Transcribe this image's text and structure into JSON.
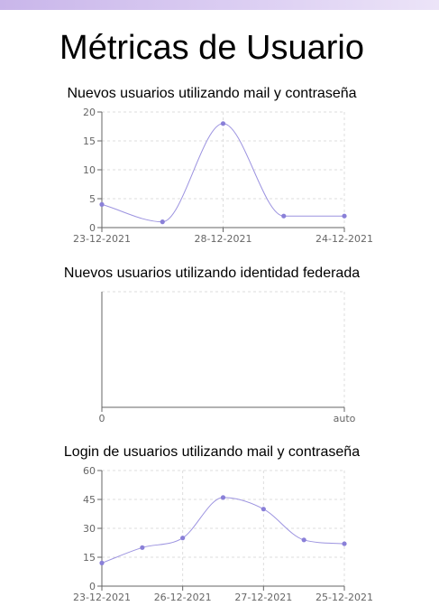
{
  "page": {
    "title": "Métricas de Usuario"
  },
  "style": {
    "line_color": "#9c93e0",
    "point_color": "#8a80d8",
    "grid_color": "#dddddd",
    "axis_color": "#666666",
    "top_bar_color": "#c9b6ea"
  },
  "chart_data": [
    {
      "type": "line",
      "title": "Nuevos usuarios utilizando mail y contraseña",
      "x": [
        "23-12-2021",
        "",
        "28-12-2021",
        "",
        "24-12-2021"
      ],
      "values": [
        4,
        1,
        18,
        2,
        2
      ],
      "ylim": [
        0,
        20
      ],
      "yticks": [
        0,
        5,
        10,
        15,
        20
      ],
      "xtick_labels": [
        "23-12-2021",
        "28-12-2021",
        "24-12-2021"
      ],
      "grid": true,
      "legend": "none"
    },
    {
      "type": "line",
      "title": "Nuevos usuarios utilizando identidad federada",
      "x": [],
      "values": [],
      "xtick_labels": [
        "0",
        "auto"
      ],
      "grid": true,
      "legend": "none"
    },
    {
      "type": "line",
      "title": "Login de usuarios utilizando mail y contraseña",
      "x": [
        "23-12-2021",
        "",
        "26-12-2021",
        "",
        "27-12-2021",
        "",
        "25-12-2021"
      ],
      "values": [
        12,
        20,
        25,
        46,
        40,
        24,
        22
      ],
      "ylim": [
        0,
        60
      ],
      "yticks": [
        0,
        15,
        30,
        45,
        60
      ],
      "xtick_labels": [
        "23-12-2021",
        "26-12-2021",
        "27-12-2021",
        "25-12-2021"
      ],
      "grid": true,
      "legend": "none"
    }
  ]
}
